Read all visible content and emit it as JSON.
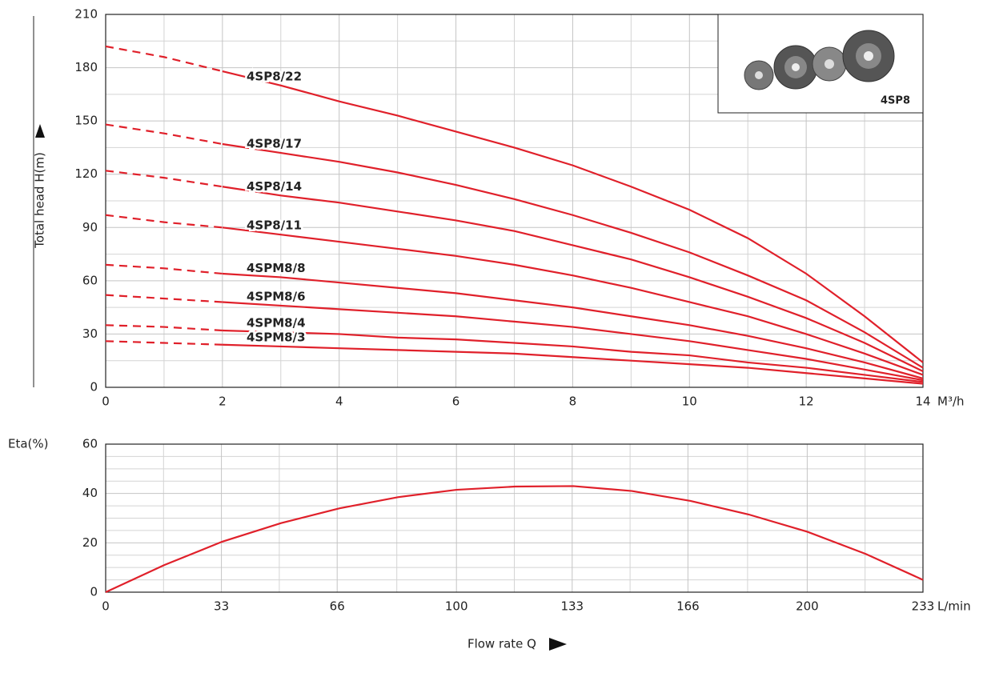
{
  "chart_data": [
    {
      "type": "line",
      "ylabel": "Total head H(m)",
      "x_unit": "M³/h",
      "annotation": "4SP8",
      "xlim": [
        0,
        14
      ],
      "ylim": [
        0,
        210
      ],
      "xticks": [
        0,
        2,
        4,
        6,
        8,
        10,
        12,
        14
      ],
      "yticks": [
        0,
        30,
        60,
        90,
        120,
        150,
        180,
        210
      ],
      "grid": true,
      "minor_grid": {
        "x": 2,
        "y": 2
      },
      "dashed_until": 2,
      "x": [
        0,
        1,
        2,
        3,
        4,
        5,
        6,
        7,
        8,
        9,
        10,
        11,
        12,
        13,
        14
      ],
      "series": [
        {
          "name": "4SP8/22",
          "color": "#e0202a",
          "values": [
            192,
            186,
            178,
            170,
            161,
            153,
            144,
            135,
            125,
            113,
            100,
            84,
            64,
            40,
            14
          ]
        },
        {
          "name": "4SP8/17",
          "color": "#e0202a",
          "values": [
            148,
            143,
            137,
            132,
            127,
            121,
            114,
            106,
            97,
            87,
            76,
            63,
            49,
            31,
            11
          ]
        },
        {
          "name": "4SP8/14",
          "color": "#e0202a",
          "values": [
            122,
            118,
            113,
            108,
            104,
            99,
            94,
            88,
            80,
            72,
            62,
            51,
            39,
            25,
            9
          ]
        },
        {
          "name": "4SP8/11",
          "color": "#e0202a",
          "values": [
            97,
            93,
            90,
            86,
            82,
            78,
            74,
            69,
            63,
            56,
            48,
            40,
            30,
            19,
            7
          ]
        },
        {
          "name": "4SPM8/8",
          "color": "#e0202a",
          "values": [
            69,
            67,
            64,
            62,
            59,
            56,
            53,
            49,
            45,
            40,
            35,
            29,
            22,
            14,
            5
          ]
        },
        {
          "name": "4SPM8/6",
          "color": "#e0202a",
          "values": [
            52,
            50,
            48,
            46,
            44,
            42,
            40,
            37,
            34,
            30,
            26,
            21,
            16,
            10,
            4
          ]
        },
        {
          "name": "4SPM8/4",
          "color": "#e0202a",
          "values": [
            35,
            34,
            32,
            31,
            30,
            28,
            27,
            25,
            23,
            20,
            18,
            14,
            11,
            7,
            3
          ]
        },
        {
          "name": "4SPM8/3",
          "color": "#e0202a",
          "values": [
            26,
            25,
            24,
            23,
            22,
            21,
            20,
            19,
            17,
            15,
            13,
            11,
            8,
            5,
            2
          ]
        }
      ]
    },
    {
      "type": "line",
      "ylabel": "Eta(%)",
      "xlabel": "Flow rate Q",
      "x_unit": "L/min",
      "xlim": [
        0,
        233
      ],
      "ylim": [
        0,
        60
      ],
      "xticks": [
        0,
        33,
        66,
        100,
        133,
        166,
        200,
        233
      ],
      "yticks": [
        0,
        20,
        40,
        60
      ],
      "grid": true,
      "minor_grid": {
        "x": 2,
        "y": 4
      },
      "x": [
        0,
        16.7,
        33.3,
        50,
        66.7,
        83.3,
        100,
        116.7,
        133.3,
        150,
        166.7,
        183.3,
        200,
        216.7,
        233
      ],
      "series": [
        {
          "color": "#e0202a",
          "values": [
            0,
            11,
            20.5,
            28,
            34,
            38.5,
            41.5,
            42.8,
            43,
            41,
            37,
            31.5,
            24.5,
            15.5,
            5
          ]
        }
      ]
    }
  ]
}
